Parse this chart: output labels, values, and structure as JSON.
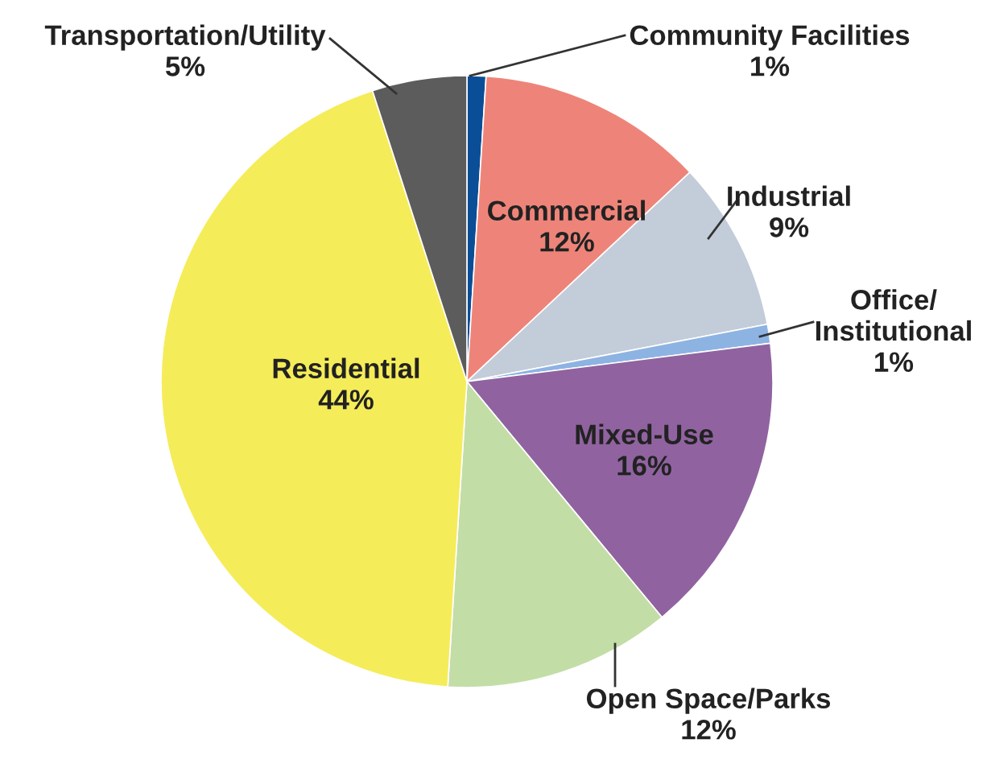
{
  "chart_data": {
    "type": "pie",
    "categories": [
      "Community Facilities",
      "Commercial",
      "Industrial",
      "Office/\nInstitutional",
      "Mixed-Use",
      "Open Space/Parks",
      "Residential",
      "Transportation/Utility"
    ],
    "values": [
      1,
      12,
      9,
      1,
      16,
      12,
      44,
      5
    ],
    "colors": [
      "#0b4e98",
      "#ee8479",
      "#c3ccd9",
      "#8db3e2",
      "#9063a0",
      "#c3dda6",
      "#f5ec59",
      "#5c5c5c"
    ],
    "value_labels": [
      "1%",
      "12%",
      "9%",
      "1%",
      "16%",
      "12%",
      "44%",
      "5%"
    ]
  }
}
